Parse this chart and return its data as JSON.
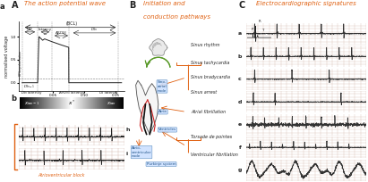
{
  "title_A": "The action potential wave",
  "title_B": "Initiation and\nconduction pathways",
  "title_C": "Electrocardiographic signatures",
  "panel_A_label": "A",
  "panel_B_label": "B",
  "panel_C_label": "C",
  "bg_color": "#ffffff",
  "orange_color": "#e06010",
  "red_color": "#cc2222",
  "green_color": "#5a9a2a",
  "dark_color": "#222222",
  "ecg_bg": "#e8e0d0",
  "ecg_grid": "#c8a898",
  "ecg_labels": [
    "a",
    "b",
    "c",
    "d",
    "e",
    "f",
    "g"
  ],
  "ecg_patterns": [
    "normal",
    "tachy",
    "brady",
    "arrest",
    "afib",
    "torsade",
    "vfib"
  ],
  "node_labels": [
    "Sino-\natrial\nnode",
    "Atria",
    "Ventricles",
    "Atrio-\nventricular\nnode",
    "Purkinje system"
  ],
  "conditions": [
    "Sinus rhythm",
    "Sinus tachycardia",
    "Sinus bradycardia",
    "Sinus arrest",
    "Atrial fibrillation",
    "Torsade de pointes",
    "Ventricular fibrillation"
  ],
  "bottom_note": "Atrioventricular block"
}
